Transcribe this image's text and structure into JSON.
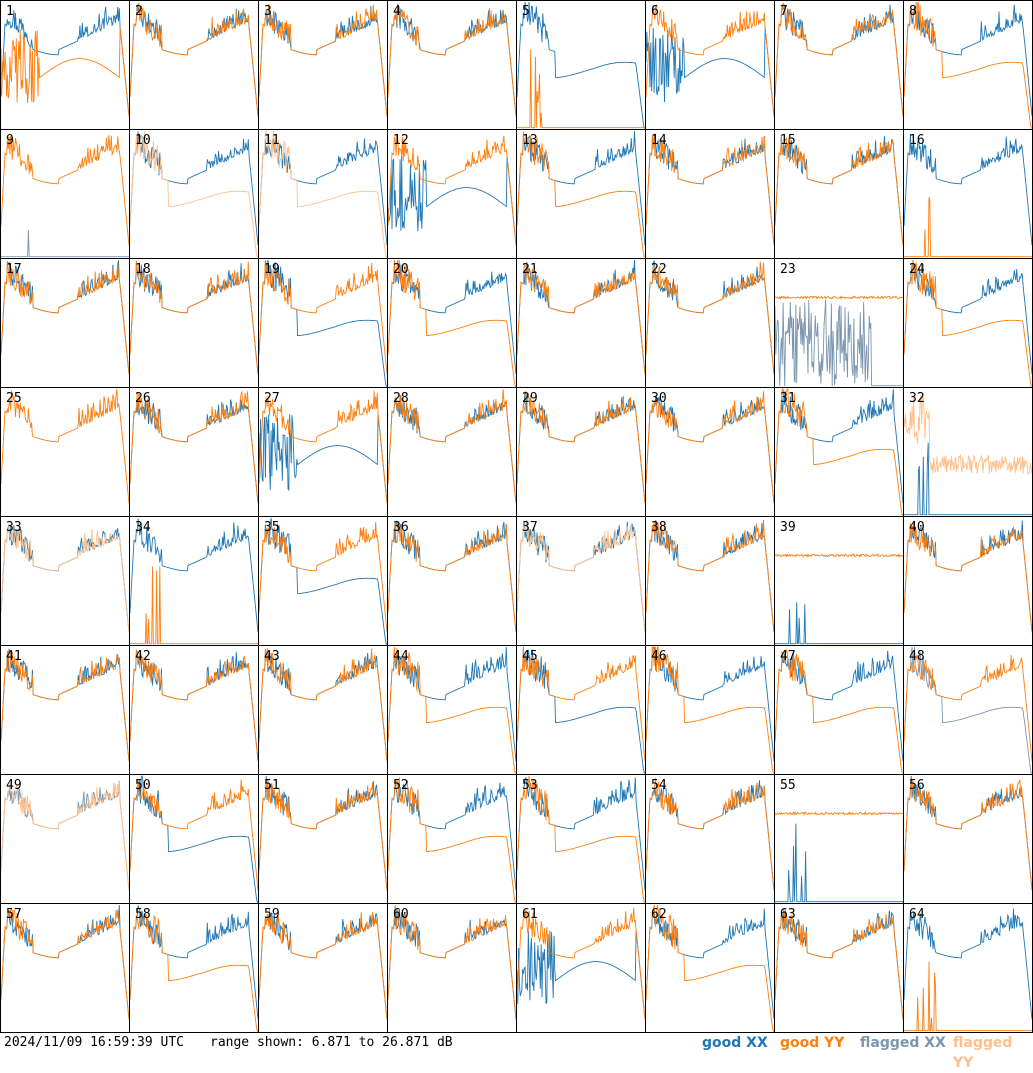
{
  "footer": {
    "timestamp": "2024/11/09 16:59:39 UTC",
    "range": "range shown: 6.871 to 26.871 dB"
  },
  "legend": [
    {
      "label": "good XX",
      "color": "#1f77b4"
    },
    {
      "label": "good YY",
      "color": "#ff7f0e"
    },
    {
      "label": "flagged XX",
      "color": "#7a96b0"
    },
    {
      "label": "flagged YY",
      "color": "#ffbf8a"
    }
  ],
  "chart_data": {
    "type": "line",
    "title": "",
    "ylim": [
      6.871,
      26.871
    ],
    "grid": false,
    "legend_position": "bottom-right",
    "panels": [
      {
        "id": "1",
        "xx": "normal",
        "yy": "bad"
      },
      {
        "id": "2",
        "xx": "normal",
        "yy": "normal"
      },
      {
        "id": "3",
        "xx": "normal",
        "yy": "normal"
      },
      {
        "id": "4",
        "xx": "normal",
        "yy": "normal"
      },
      {
        "id": "5",
        "xx": "lowmid",
        "yy": "dead"
      },
      {
        "id": "6",
        "xx": "bad",
        "yy": "normal"
      },
      {
        "id": "7",
        "xx": "normal",
        "yy": "normal"
      },
      {
        "id": "8",
        "xx": "normal",
        "yy": "lowmid"
      },
      {
        "id": "9",
        "xx": "flagdead",
        "yy": "normal"
      },
      {
        "id": "10",
        "xx": "normal",
        "yy": "flaglow"
      },
      {
        "id": "11",
        "xx": "normal",
        "yy": "flaglow"
      },
      {
        "id": "12",
        "xx": "bad",
        "yy": "normal"
      },
      {
        "id": "13",
        "xx": "normal",
        "yy": "lowmid"
      },
      {
        "id": "14",
        "xx": "normal",
        "yy": "normal"
      },
      {
        "id": "15",
        "xx": "normal",
        "yy": "normal"
      },
      {
        "id": "16",
        "xx": "normal",
        "yy": "dead"
      },
      {
        "id": "17",
        "xx": "normal",
        "yy": "normal"
      },
      {
        "id": "18",
        "xx": "normal",
        "yy": "normal"
      },
      {
        "id": "19",
        "xx": "lowmid",
        "yy": "normal"
      },
      {
        "id": "20",
        "xx": "normal",
        "yy": "lowmid"
      },
      {
        "id": "21",
        "xx": "normal",
        "yy": "normal"
      },
      {
        "id": "22",
        "xx": "normal",
        "yy": "normal"
      },
      {
        "id": "23",
        "xx": "flagnoise",
        "yy": "flat"
      },
      {
        "id": "24",
        "xx": "normal",
        "yy": "lowmid"
      },
      {
        "id": "25",
        "xx": "none",
        "yy": "normal"
      },
      {
        "id": "26",
        "xx": "normal",
        "yy": "normal"
      },
      {
        "id": "27",
        "xx": "bad",
        "yy": "normal"
      },
      {
        "id": "28",
        "xx": "normal",
        "yy": "normal"
      },
      {
        "id": "29",
        "xx": "normal",
        "yy": "normal"
      },
      {
        "id": "30",
        "xx": "normal",
        "yy": "normal"
      },
      {
        "id": "31",
        "xx": "normal",
        "yy": "lowmid"
      },
      {
        "id": "32",
        "xx": "dead",
        "yy": "flagnoisy"
      },
      {
        "id": "33",
        "xx": "normal",
        "yy": "flagnormal"
      },
      {
        "id": "34",
        "xx": "normal",
        "yy": "baddead"
      },
      {
        "id": "35",
        "xx": "lowmid",
        "yy": "normal"
      },
      {
        "id": "36",
        "xx": "normal",
        "yy": "normal"
      },
      {
        "id": "37",
        "xx": "normal",
        "yy": "flagnormal"
      },
      {
        "id": "38",
        "xx": "normal",
        "yy": "normal"
      },
      {
        "id": "39",
        "xx": "dead",
        "yy": "flat"
      },
      {
        "id": "40",
        "xx": "normal",
        "yy": "normal"
      },
      {
        "id": "41",
        "xx": "normal",
        "yy": "normal"
      },
      {
        "id": "42",
        "xx": "normal",
        "yy": "normal"
      },
      {
        "id": "43",
        "xx": "normal",
        "yy": "normal"
      },
      {
        "id": "44",
        "xx": "normal",
        "yy": "lowmid"
      },
      {
        "id": "45",
        "xx": "lowmid",
        "yy": "normal"
      },
      {
        "id": "46",
        "xx": "normal",
        "yy": "lowmid"
      },
      {
        "id": "47",
        "xx": "normal",
        "yy": "lowmid"
      },
      {
        "id": "48",
        "xx": "flaglow",
        "yy": "normal"
      },
      {
        "id": "49",
        "xx": "flagnormal",
        "yy": "flagnormal"
      },
      {
        "id": "50",
        "xx": "lowmid",
        "yy": "normal"
      },
      {
        "id": "51",
        "xx": "normal",
        "yy": "normal"
      },
      {
        "id": "52",
        "xx": "normal",
        "yy": "lowmid"
      },
      {
        "id": "53",
        "xx": "normal",
        "yy": "lowmid"
      },
      {
        "id": "54",
        "xx": "normal",
        "yy": "normal"
      },
      {
        "id": "55",
        "xx": "dead",
        "yy": "flat"
      },
      {
        "id": "56",
        "xx": "normal",
        "yy": "normal"
      },
      {
        "id": "57",
        "xx": "normal",
        "yy": "normal"
      },
      {
        "id": "58",
        "xx": "normal",
        "yy": "lowmid"
      },
      {
        "id": "59",
        "xx": "normal",
        "yy": "normal"
      },
      {
        "id": "60",
        "xx": "normal",
        "yy": "normal"
      },
      {
        "id": "61",
        "xx": "bad",
        "yy": "normal"
      },
      {
        "id": "62",
        "xx": "normal",
        "yy": "lowmid"
      },
      {
        "id": "63",
        "xx": "normal",
        "yy": "normal"
      },
      {
        "id": "64",
        "xx": "normal",
        "yy": "dead"
      }
    ]
  }
}
